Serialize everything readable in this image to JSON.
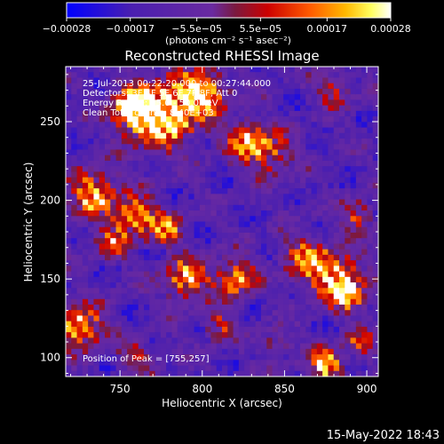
{
  "colorbar": {
    "tick_labels": [
      "−0.00028",
      "−0.00017",
      "−5.5e−05",
      "5.5e−05",
      "0.00017",
      "0.00028"
    ],
    "tick_values": [
      -0.00028,
      -0.00017,
      -5.5e-05,
      5.5e-05,
      0.00017,
      0.00028
    ],
    "range": [
      -0.00028,
      0.00028
    ],
    "unit_label": "(photons cm⁻² s⁻¹ asec⁻²)",
    "colors": [
      "#0000ff",
      "#4a1fb0",
      "#6a2aa0",
      "#7a1a40",
      "#cc0000",
      "#ff5a00",
      "#ffb800",
      "#ffff60",
      "#ffffff"
    ]
  },
  "chart_data": {
    "type": "heatmap",
    "title": "Reconstructed RHESSI Image",
    "xlabel": "Heliocentric X (arcsec)",
    "ylabel": "Heliocentric Y (arcsec)",
    "xlim": [
      717,
      907
    ],
    "ylim": [
      88,
      285
    ],
    "xticks": [
      750,
      800,
      850,
      900
    ],
    "yticks": [
      100,
      150,
      200,
      250
    ],
    "xtick_labels": [
      "750",
      "800",
      "850",
      "900"
    ],
    "ytick_labels": [
      "100",
      "150",
      "200",
      "250"
    ],
    "annotations": [
      "25-Jul-2013 00:22:20.000 to 00:27:44.000",
      "Detectors: 3F 4F 5F 6F 7F 8F, Att 0",
      "Energy Range: 25.0 - 50.0 keV",
      "Clean     Total counts: 8.40E+03"
    ],
    "peak_label": "Position of Peak = [755,257]",
    "peak": [
      755,
      257
    ]
  },
  "footer": {
    "timestamp": "15-May-2022 18:43"
  }
}
